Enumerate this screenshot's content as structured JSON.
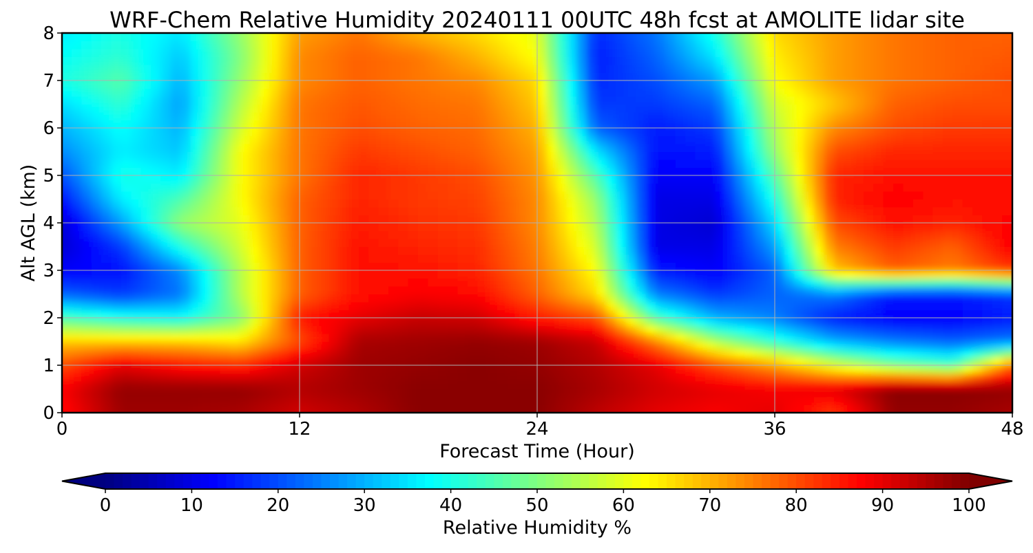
{
  "chart_data": {
    "type": "heatmap",
    "title": "WRF-Chem Relative Humidity 20240111 00UTC 48h fcst at AMOLITE lidar site",
    "xlabel": "Forecast Time (Hour)",
    "ylabel": "Alt AGL (km)",
    "xlim": [
      0,
      48
    ],
    "ylim": [
      0,
      8
    ],
    "x_ticks": [
      0,
      12,
      24,
      36,
      48
    ],
    "y_ticks": [
      0,
      1,
      2,
      3,
      4,
      5,
      6,
      7,
      8
    ],
    "grid": true,
    "x": [
      0,
      3,
      6,
      9,
      12,
      15,
      18,
      21,
      24,
      27,
      30,
      33,
      36,
      39,
      42,
      45,
      48
    ],
    "y": [
      0,
      0.5,
      1,
      1.5,
      2,
      2.5,
      3,
      3.5,
      4,
      4.5,
      5,
      5.5,
      6,
      6.5,
      7,
      7.5,
      8
    ],
    "z": [
      [
        86,
        97,
        97,
        96,
        92,
        95,
        99,
        99,
        99,
        94,
        90,
        88,
        90,
        82,
        98,
        98,
        96
      ],
      [
        88,
        98,
        98,
        98,
        95,
        97,
        99,
        99,
        99,
        96,
        92,
        90,
        88,
        90,
        99,
        99,
        98
      ],
      [
        80,
        90,
        86,
        84,
        92,
        97,
        98,
        99,
        98,
        95,
        90,
        80,
        72,
        60,
        50,
        45,
        78
      ],
      [
        68,
        68,
        68,
        65,
        80,
        96,
        97,
        98,
        97,
        93,
        75,
        55,
        42,
        30,
        25,
        22,
        25
      ],
      [
        45,
        40,
        38,
        50,
        85,
        90,
        93,
        92,
        85,
        80,
        45,
        30,
        25,
        15,
        12,
        12,
        15
      ],
      [
        22,
        18,
        24,
        55,
        78,
        86,
        88,
        87,
        78,
        66,
        25,
        18,
        22,
        25,
        15,
        15,
        18
      ],
      [
        12,
        14,
        26,
        55,
        78,
        86,
        86,
        84,
        76,
        62,
        15,
        12,
        22,
        68,
        78,
        75,
        82
      ],
      [
        8,
        18,
        40,
        58,
        78,
        86,
        84,
        83,
        75,
        58,
        10,
        10,
        28,
        75,
        82,
        78,
        88
      ],
      [
        8,
        28,
        52,
        60,
        78,
        85,
        83,
        82,
        74,
        55,
        10,
        8,
        34,
        80,
        86,
        84,
        88
      ],
      [
        14,
        36,
        45,
        62,
        78,
        84,
        82,
        81,
        74,
        52,
        10,
        10,
        40,
        84,
        88,
        86,
        86
      ],
      [
        20,
        40,
        36,
        62,
        76,
        84,
        82,
        80,
        73,
        45,
        12,
        12,
        46,
        84,
        86,
        86,
        86
      ],
      [
        26,
        36,
        32,
        62,
        76,
        82,
        80,
        78,
        72,
        35,
        14,
        15,
        52,
        80,
        84,
        84,
        84
      ],
      [
        30,
        38,
        30,
        58,
        76,
        80,
        78,
        77,
        70,
        22,
        15,
        18,
        55,
        74,
        80,
        82,
        82
      ],
      [
        34,
        42,
        28,
        55,
        76,
        79,
        77,
        76,
        68,
        18,
        18,
        22,
        58,
        68,
        78,
        80,
        80
      ],
      [
        40,
        46,
        30,
        52,
        74,
        78,
        76,
        74,
        66,
        16,
        20,
        28,
        62,
        72,
        76,
        78,
        80
      ],
      [
        38,
        42,
        32,
        50,
        74,
        78,
        76,
        70,
        62,
        15,
        22,
        35,
        64,
        72,
        76,
        78,
        79
      ],
      [
        36,
        40,
        35,
        52,
        72,
        76,
        70,
        66,
        60,
        16,
        24,
        40,
        66,
        72,
        76,
        78,
        78
      ]
    ],
    "colorbar": {
      "label": "Relative Humidity %",
      "ticks": [
        0,
        10,
        20,
        30,
        40,
        50,
        60,
        70,
        80,
        90,
        100
      ],
      "range": [
        0,
        100
      ],
      "extend": "both",
      "colormap": "jet"
    }
  }
}
